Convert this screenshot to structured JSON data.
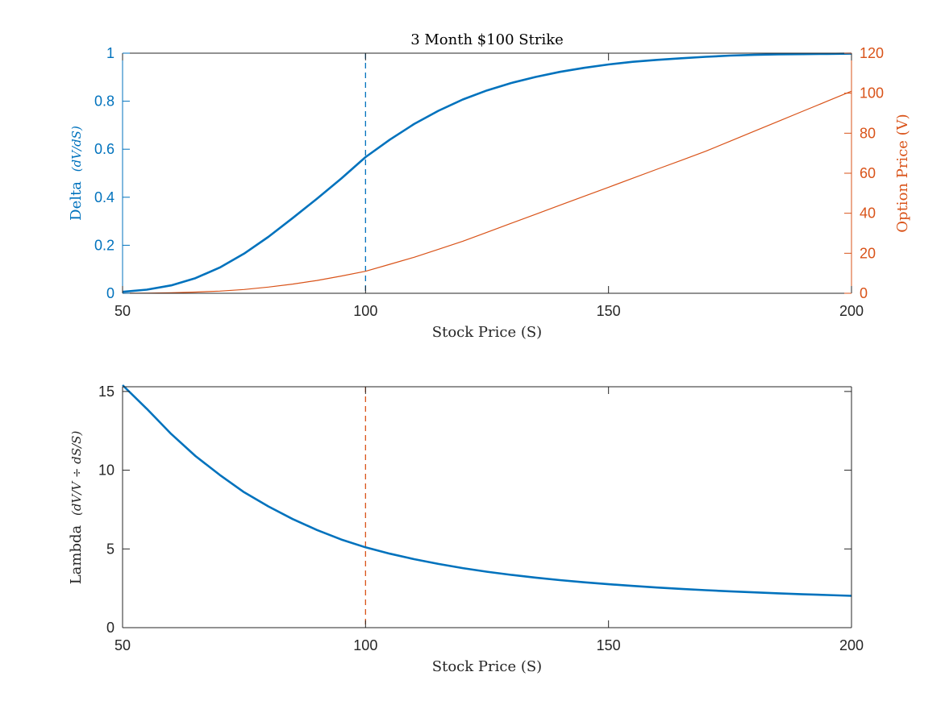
{
  "colors": {
    "blue": "#0072BD",
    "orange": "#D95319",
    "axis": "#262626",
    "background": "#ffffff"
  },
  "chart_data": [
    {
      "type": "line",
      "title": "3 Month $100 Strike",
      "xlabel": "Stock Price (S)",
      "ylabel_left": {
        "text": "Delta",
        "math": "(dV/dS)"
      },
      "ylabel_right": "Option Price (V)",
      "xlim": [
        50,
        200
      ],
      "ylim_left": [
        0,
        1
      ],
      "ylim_right": [
        0,
        120
      ],
      "xticks": [
        "50",
        "100",
        "150",
        "200"
      ],
      "yticks_left": [
        "0",
        "0.2",
        "0.4",
        "0.6",
        "0.8",
        "1"
      ],
      "yticks_right": [
        "0",
        "20",
        "40",
        "60",
        "80",
        "100",
        "120"
      ],
      "vline": {
        "x": 100,
        "style": "dashed",
        "color": "#0072BD"
      },
      "series": [
        {
          "axis": "left",
          "color": "#0072BD",
          "x": [
            50,
            55,
            60,
            65,
            70,
            75,
            80,
            85,
            90,
            95,
            100,
            105,
            110,
            115,
            120,
            125,
            130,
            135,
            140,
            145,
            150,
            155,
            160,
            165,
            170,
            175,
            180,
            185,
            190,
            195,
            200
          ],
          "values": [
            0.006,
            0.015,
            0.033,
            0.063,
            0.107,
            0.165,
            0.235,
            0.313,
            0.394,
            0.478,
            0.567,
            0.64,
            0.705,
            0.76,
            0.807,
            0.845,
            0.876,
            0.901,
            0.922,
            0.939,
            0.953,
            0.964,
            0.972,
            0.979,
            0.985,
            0.99,
            0.993,
            0.995,
            0.996,
            0.997,
            0.998
          ]
        },
        {
          "axis": "right",
          "color": "#D95319",
          "x": [
            50,
            55,
            60,
            65,
            70,
            75,
            80,
            85,
            90,
            95,
            100,
            105,
            110,
            115,
            120,
            125,
            130,
            135,
            140,
            145,
            150,
            155,
            160,
            165,
            170,
            175,
            180,
            185,
            190,
            195,
            200
          ],
          "values": [
            0.0,
            0.1,
            0.3,
            0.6,
            1.1,
            1.9,
            3.1,
            4.6,
            6.4,
            8.6,
            11.0,
            14.5,
            18.0,
            22.0,
            26.0,
            30.5,
            35.0,
            39.5,
            44.0,
            48.5,
            53.0,
            57.5,
            62.0,
            66.5,
            71.0,
            76.0,
            81.0,
            86.0,
            91.0,
            96.0,
            101.0
          ]
        }
      ]
    },
    {
      "type": "line",
      "xlabel": "Stock Price (S)",
      "ylabel_left": {
        "text": "Lambda",
        "math": "(dV/V ÷ dS/S)"
      },
      "xlim": [
        50,
        200
      ],
      "ylim_left": [
        0,
        15.3
      ],
      "xticks": [
        "50",
        "100",
        "150",
        "200"
      ],
      "yticks_left": [
        "0",
        "5",
        "10",
        "15"
      ],
      "vline": {
        "x": 100,
        "style": "dashed",
        "color": "#D95319"
      },
      "series": [
        {
          "axis": "left",
          "color": "#0072BD",
          "x": [
            50,
            55,
            60,
            65,
            70,
            75,
            80,
            85,
            90,
            95,
            100,
            105,
            110,
            115,
            120,
            125,
            130,
            135,
            140,
            145,
            150,
            155,
            160,
            165,
            170,
            175,
            180,
            185,
            190,
            195,
            200
          ],
          "values": [
            15.4,
            13.9,
            12.3,
            10.9,
            9.7,
            8.6,
            7.7,
            6.9,
            6.2,
            5.6,
            5.1,
            4.7,
            4.35,
            4.05,
            3.78,
            3.55,
            3.35,
            3.18,
            3.02,
            2.88,
            2.76,
            2.65,
            2.55,
            2.46,
            2.38,
            2.31,
            2.24,
            2.18,
            2.12,
            2.07,
            2.02
          ]
        }
      ]
    }
  ]
}
